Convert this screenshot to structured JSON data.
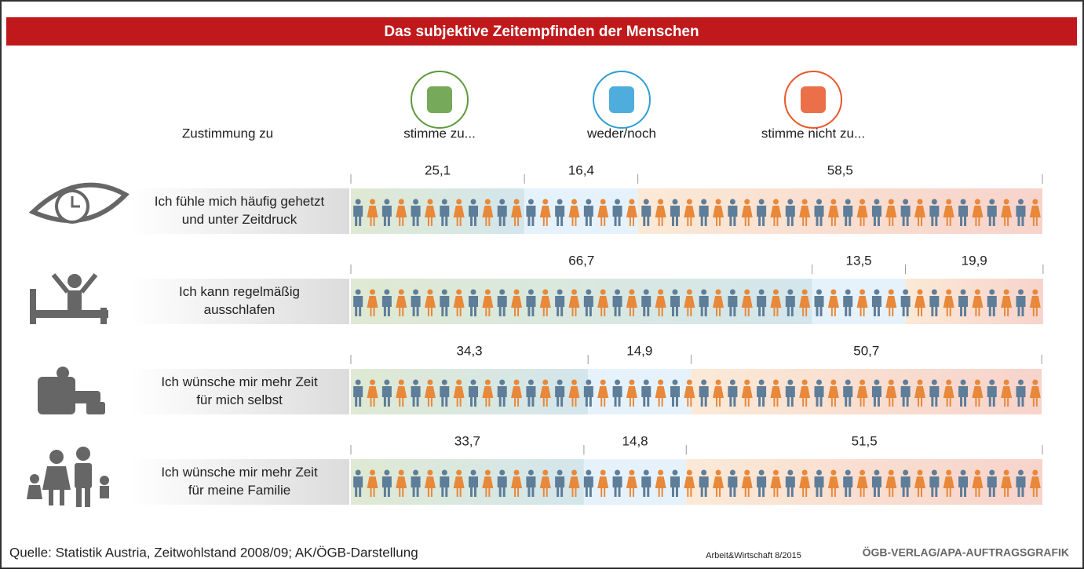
{
  "chart_data": {
    "type": "stacked_bar",
    "title": "Das subjektive Zeitempfinden der Menschen",
    "header": "Zustimmung zu",
    "categories": [
      [
        "Ich fühle mich häufig gehetzt",
        "und unter Zeitdruck"
      ],
      [
        "Ich kann regelmäßig",
        "ausschlafen"
      ],
      [
        "Ich wünsche mir mehr Zeit",
        "für mich selbst"
      ],
      [
        "Ich wünsche mir mehr Zeit",
        "für meine Familie"
      ]
    ],
    "series": [
      {
        "name": "stimme zu...",
        "color": "#5e9a3c",
        "fill_colors": [
          "#dfe9d3",
          "#d3e6ec"
        ],
        "values": [
          25.1,
          66.7,
          34.3,
          33.7
        ],
        "value_labels": [
          "25,1",
          "66,7",
          "34,3",
          "33,7"
        ]
      },
      {
        "name": "weder/noch",
        "color": "#2f9fd6",
        "fill_colors": [
          "#e6f2fb",
          "#e6f2fb"
        ],
        "values": [
          16.4,
          13.5,
          14.9,
          14.8
        ],
        "value_labels": [
          "16,4",
          "13,5",
          "14,9",
          "14,8"
        ]
      },
      {
        "name": "stimme nicht zu...",
        "color": "#e8572a",
        "fill_colors": [
          "#fbe9d6",
          "#f7d3cb"
        ],
        "values": [
          58.5,
          19.9,
          50.7,
          51.5
        ],
        "value_labels": [
          "58,5",
          "19,9",
          "50,7",
          "51,5"
        ]
      }
    ],
    "xlim": [
      0,
      100
    ],
    "source": "Quelle: Statistik Austria, Zeitwohlstand 2008/09; AK/ÖGB-Darstellung",
    "publication": "Arbeit&Wirtschaft 8/2015",
    "credit": "ÖGB-VERLAG/APA-AUFTRAGSGRAFIK"
  }
}
